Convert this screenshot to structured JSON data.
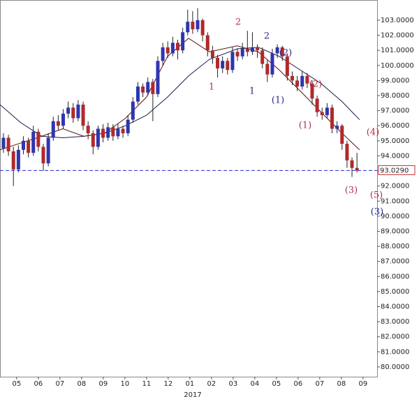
{
  "chart_data": {
    "type": "candlestick",
    "xlim": [
      4.23,
      21.65
    ],
    "ylim": [
      79.35,
      104.34
    ],
    "xticks": [
      {
        "value": 5,
        "label": "05"
      },
      {
        "value": 6,
        "label": "06"
      },
      {
        "value": 7,
        "label": "07"
      },
      {
        "value": 8,
        "label": "08"
      },
      {
        "value": 9,
        "label": "09"
      },
      {
        "value": 10,
        "label": "10"
      },
      {
        "value": 11,
        "label": "11"
      },
      {
        "value": 12,
        "label": "12"
      },
      {
        "value": 13,
        "label": "01"
      },
      {
        "value": 14,
        "label": "02"
      },
      {
        "value": 15,
        "label": "03"
      },
      {
        "value": 16,
        "label": "04"
      },
      {
        "value": 17,
        "label": "05"
      },
      {
        "value": 18,
        "label": "06"
      },
      {
        "value": 19,
        "label": "07"
      },
      {
        "value": 20,
        "label": "08"
      },
      {
        "value": 21,
        "label": "09"
      }
    ],
    "x_group_label": "2017",
    "yticks": [
      {
        "value": 80,
        "label": "80.0000"
      },
      {
        "value": 81,
        "label": "81.0000"
      },
      {
        "value": 82,
        "label": "82.0000"
      },
      {
        "value": 83,
        "label": "83.0000"
      },
      {
        "value": 84,
        "label": "84.0000"
      },
      {
        "value": 85,
        "label": "85.0000"
      },
      {
        "value": 86,
        "label": "86.0000"
      },
      {
        "value": 87,
        "label": "87.0000"
      },
      {
        "value": 88,
        "label": "88.0000"
      },
      {
        "value": 89,
        "label": "89.0000"
      },
      {
        "value": 90,
        "label": "90.0000"
      },
      {
        "value": 91,
        "label": "91.0000"
      },
      {
        "value": 92,
        "label": "92.0000"
      },
      {
        "value": 93,
        "label": "93.0000"
      },
      {
        "value": 94,
        "label": "94.0000"
      },
      {
        "value": 95,
        "label": "95.0000"
      },
      {
        "value": 96,
        "label": "96.0000"
      },
      {
        "value": 97,
        "label": "97.0000"
      },
      {
        "value": 98,
        "label": "98.0000"
      },
      {
        "value": 99,
        "label": "99.0000"
      },
      {
        "value": 100,
        "label": "100.0000"
      },
      {
        "value": 101,
        "label": "101.0000"
      },
      {
        "value": 102,
        "label": "102.0000"
      },
      {
        "value": 103,
        "label": "103.0000"
      }
    ],
    "up_color": "#2f35b0",
    "down_color": "#b02a2a",
    "x": [
      4.39,
      4.62,
      4.85,
      5.08,
      5.31,
      5.54,
      5.77,
      6.0,
      6.23,
      6.46,
      6.69,
      6.92,
      7.15,
      7.38,
      7.61,
      7.84,
      8.07,
      8.3,
      8.53,
      8.76,
      8.99,
      9.22,
      9.45,
      9.68,
      9.91,
      10.14,
      10.37,
      10.6,
      10.83,
      11.06,
      11.29,
      11.52,
      11.75,
      11.98,
      12.21,
      12.44,
      12.67,
      12.9,
      13.13,
      13.36,
      13.59,
      13.82,
      14.05,
      14.28,
      14.51,
      14.74,
      14.97,
      15.2,
      15.43,
      15.66,
      15.89,
      16.12,
      16.35,
      16.58,
      16.81,
      17.04,
      17.27,
      17.5,
      17.73,
      17.96,
      18.19,
      18.42,
      18.65,
      18.88,
      19.11,
      19.34,
      19.57,
      19.8,
      20.03,
      20.26,
      20.49,
      20.72
    ],
    "open": [
      94.5,
      95.2,
      94.3,
      93.1,
      94.4,
      95.0,
      94.2,
      95.6,
      94.6,
      93.5,
      95.2,
      96.3,
      96.0,
      96.8,
      97.2,
      96.5,
      97.4,
      96.0,
      95.5,
      94.6,
      95.8,
      95.2,
      95.9,
      95.3,
      95.8,
      95.5,
      96.4,
      97.6,
      98.6,
      98.2,
      98.9,
      98.1,
      100.3,
      101.2,
      100.8,
      101.5,
      101.0,
      102.2,
      102.9,
      102.4,
      103.0,
      102.0,
      101.0,
      100.5,
      99.8,
      100.3,
      99.7,
      100.9,
      100.6,
      101.1,
      100.9,
      101.2,
      101.0,
      100.1,
      99.4,
      100.8,
      101.2,
      100.6,
      99.3,
      99.0,
      98.6,
      99.3,
      98.8,
      97.8,
      96.9,
      96.7,
      97.2,
      95.8,
      96.0,
      94.8,
      93.7,
      93.2
    ],
    "high": [
      95.5,
      95.4,
      94.6,
      94.7,
      95.3,
      95.2,
      96.0,
      95.8,
      94.8,
      95.5,
      96.6,
      96.7,
      97.1,
      97.6,
      97.5,
      97.7,
      97.6,
      96.3,
      95.7,
      96.0,
      96.1,
      96.2,
      96.1,
      96.1,
      96.0,
      96.7,
      97.9,
      98.9,
      98.8,
      99.2,
      99.1,
      100.6,
      101.5,
      101.6,
      101.9,
      101.7,
      102.5,
      103.7,
      103.6,
      103.8,
      103.1,
      102.2,
      101.3,
      100.7,
      100.6,
      100.5,
      101.2,
      101.1,
      101.5,
      102.3,
      102.2,
      101.4,
      101.2,
      100.4,
      101.1,
      101.4,
      101.3,
      100.8,
      99.6,
      99.3,
      99.6,
      99.5,
      99.0,
      98.0,
      97.2,
      97.5,
      97.4,
      96.3,
      96.1,
      95.0,
      93.9,
      94.2
    ],
    "low": [
      94.2,
      94.0,
      92.0,
      92.9,
      94.1,
      93.9,
      94.0,
      94.3,
      93.0,
      93.3,
      95.0,
      95.7,
      95.8,
      96.5,
      96.2,
      96.3,
      95.7,
      95.1,
      94.1,
      94.4,
      94.9,
      95.0,
      95.0,
      95.1,
      95.2,
      95.3,
      96.2,
      97.4,
      97.9,
      98.0,
      96.3,
      97.9,
      100.0,
      100.5,
      100.6,
      100.4,
      100.8,
      102.0,
      102.1,
      102.2,
      101.6,
      100.6,
      100.1,
      99.2,
      99.5,
      99.4,
      99.5,
      100.3,
      100.4,
      100.6,
      100.7,
      100.5,
      99.8,
      98.9,
      99.2,
      100.5,
      100.3,
      99.0,
      98.7,
      98.3,
      98.4,
      98.5,
      97.4,
      96.6,
      96.4,
      96.5,
      95.5,
      95.5,
      94.4,
      93.2,
      92.6,
      92.9
    ],
    "close": [
      95.2,
      94.3,
      93.1,
      94.4,
      95.0,
      94.2,
      95.6,
      94.6,
      93.5,
      95.2,
      96.3,
      96.0,
      96.8,
      97.2,
      96.5,
      97.4,
      96.0,
      95.5,
      94.6,
      95.8,
      95.2,
      95.9,
      95.3,
      95.8,
      95.5,
      96.4,
      97.6,
      98.6,
      98.2,
      98.9,
      98.1,
      100.3,
      101.2,
      100.8,
      101.5,
      101.0,
      102.2,
      102.9,
      102.4,
      103.0,
      102.0,
      101.0,
      100.5,
      99.8,
      100.3,
      99.7,
      100.9,
      100.6,
      101.1,
      100.9,
      101.2,
      101.0,
      100.1,
      99.4,
      100.8,
      101.2,
      100.6,
      99.3,
      99.0,
      98.6,
      99.3,
      98.8,
      97.8,
      96.9,
      96.7,
      97.2,
      95.8,
      96.0,
      94.8,
      93.7,
      93.2,
      93.03
    ],
    "lines": [
      {
        "color": "#1a1a4a",
        "x": [
          4.23,
          5.19,
          6.16,
          7.13,
          8.1,
          9.06,
          10.03,
          11.0,
          11.97,
          12.94,
          13.9,
          15.19,
          16.16,
          17.13,
          18.1,
          19.06,
          20.03,
          20.84
        ],
        "values": [
          97.4,
          96.2,
          95.3,
          95.2,
          95.3,
          95.5,
          96.0,
          96.7,
          97.9,
          99.3,
          100.4,
          101.1,
          101.2,
          100.6,
          99.7,
          98.8,
          97.6,
          96.4
        ]
      },
      {
        "color": "#5a1010",
        "x": [
          4.23,
          5.19,
          6.16,
          7.13,
          8.1,
          9.06,
          10.03,
          11.0,
          11.97,
          12.94,
          13.9,
          15.19,
          16.16,
          17.13,
          18.1,
          19.06,
          20.03,
          20.84
        ],
        "values": [
          94.4,
          94.85,
          95.3,
          95.8,
          95.3,
          95.5,
          96.5,
          97.9,
          100.6,
          101.8,
          100.9,
          101.3,
          100.9,
          99.7,
          98.3,
          96.9,
          95.5,
          94.4
        ]
      }
    ],
    "hline": {
      "value": 93.029,
      "value_label": "93.0290",
      "color": "#2a2ad0"
    },
    "annotations": [
      "1",
      "2",
      "1",
      "2",
      "(2)",
      "(2)",
      "(1)",
      "(1)",
      "(4)",
      "(3)",
      "(5)",
      "(3)"
    ]
  }
}
